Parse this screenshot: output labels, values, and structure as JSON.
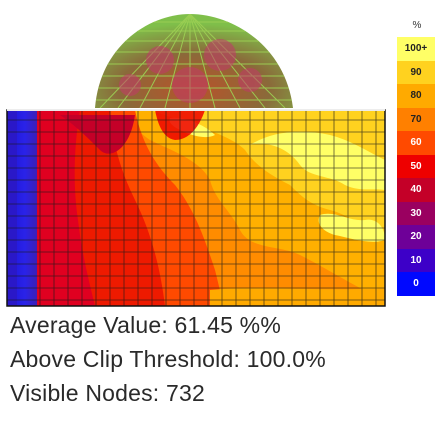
{
  "legend": {
    "unit": "%",
    "items": [
      {
        "label": "100+",
        "color": "#ffff66",
        "text": "#222222"
      },
      {
        "label": "90",
        "color": "#ffd21f",
        "text": "#222222"
      },
      {
        "label": "80",
        "color": "#ffaa00",
        "text": "#222222"
      },
      {
        "label": "70",
        "color": "#ff8000",
        "text": "#222222"
      },
      {
        "label": "60",
        "color": "#ff4a00",
        "text": "#ffffff"
      },
      {
        "label": "50",
        "color": "#ee0000",
        "text": "#ffffff"
      },
      {
        "label": "40",
        "color": "#c40028",
        "text": "#ffffff"
      },
      {
        "label": "30",
        "color": "#9a0060",
        "text": "#ffffff"
      },
      {
        "label": "20",
        "color": "#6e0098",
        "text": "#ffffff"
      },
      {
        "label": "10",
        "color": "#3d00c8",
        "text": "#ffffff"
      },
      {
        "label": "0",
        "color": "#0008ff",
        "text": "#ffffff"
      }
    ]
  },
  "stats": {
    "average": "Average Value: 61.45 %%",
    "above_clip": "Above Clip Threshold: 100.0%",
    "visible_nodes": "Visible Nodes: 732"
  }
}
